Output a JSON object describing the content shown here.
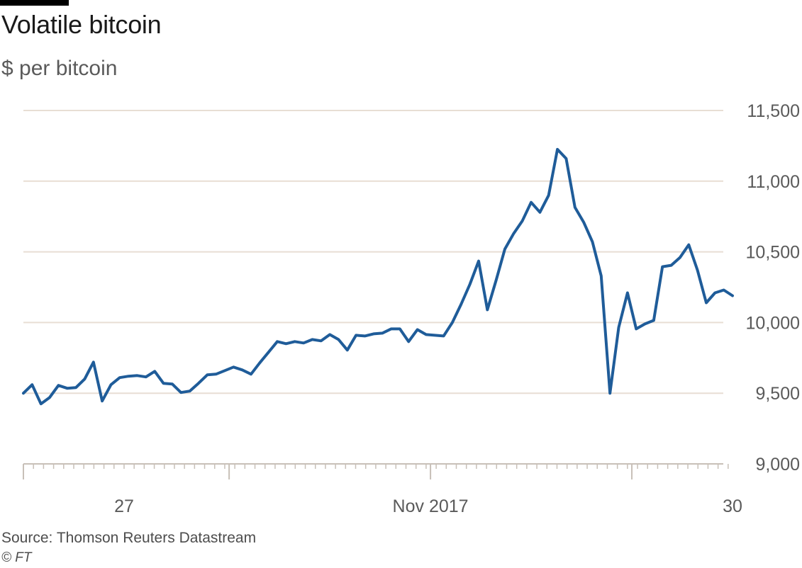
{
  "header": {
    "title": "Volatile bitcoin",
    "subtitle": "$ per bitcoin"
  },
  "footer": {
    "source": "Source: Thomson Reuters Datastream",
    "copyright": "© FT"
  },
  "colors": {
    "line": "#1f5c99",
    "grid": "#e8ded4",
    "axis": "#c8c0b8",
    "text": "#5a5a5a"
  },
  "chart_data": {
    "type": "line",
    "title": "Volatile bitcoin",
    "subtitle": "$ per bitcoin",
    "ylim": [
      9000,
      11500
    ],
    "yticks": [
      9000,
      9500,
      10000,
      10500,
      11000,
      11500
    ],
    "ytick_labels": [
      "9,000",
      "9,500",
      "10,000",
      "10,500",
      "11,000",
      "11,500"
    ],
    "xticks": [
      {
        "label": "27",
        "x": 11.5
      },
      {
        "label": "Nov 2017",
        "x": 46.5
      },
      {
        "label": "30",
        "x": 81
      }
    ],
    "grid": true,
    "axis_side": "right",
    "series": [
      {
        "values": [
          [
            0,
            9500
          ],
          [
            1,
            9560
          ],
          [
            2,
            9425
          ],
          [
            3,
            9470
          ],
          [
            4,
            9555
          ],
          [
            5,
            9535
          ],
          [
            6,
            9540
          ],
          [
            7,
            9600
          ],
          [
            8,
            9720
          ],
          [
            9,
            9445
          ],
          [
            10,
            9560
          ],
          [
            11,
            9610
          ],
          [
            12,
            9620
          ],
          [
            13,
            9625
          ],
          [
            14,
            9615
          ],
          [
            15,
            9655
          ],
          [
            16,
            9570
          ],
          [
            17,
            9565
          ],
          [
            18,
            9505
          ],
          [
            19,
            9515
          ],
          [
            20,
            9570
          ],
          [
            21,
            9630
          ],
          [
            22,
            9635
          ],
          [
            23,
            9660
          ],
          [
            24,
            9685
          ],
          [
            25,
            9665
          ],
          [
            26,
            9635
          ],
          [
            27,
            9715
          ],
          [
            28,
            9790
          ],
          [
            29,
            9865
          ],
          [
            30,
            9850
          ],
          [
            31,
            9865
          ],
          [
            32,
            9855
          ],
          [
            33,
            9880
          ],
          [
            34,
            9870
          ],
          [
            35,
            9915
          ],
          [
            36,
            9880
          ],
          [
            37,
            9805
          ],
          [
            38,
            9910
          ],
          [
            39,
            9905
          ],
          [
            40,
            9920
          ],
          [
            41,
            9925
          ],
          [
            42,
            9955
          ],
          [
            43,
            9955
          ],
          [
            44,
            9865
          ],
          [
            45,
            9950
          ],
          [
            46,
            9915
          ],
          [
            47,
            9910
          ],
          [
            48,
            9905
          ],
          [
            49,
            10000
          ],
          [
            50,
            10130
          ],
          [
            51,
            10270
          ],
          [
            52,
            10435
          ],
          [
            53,
            10090
          ],
          [
            54,
            10300
          ],
          [
            55,
            10520
          ],
          [
            56,
            10630
          ],
          [
            57,
            10720
          ],
          [
            58,
            10850
          ],
          [
            59,
            10780
          ],
          [
            60,
            10900
          ],
          [
            61,
            11225
          ],
          [
            62,
            11160
          ],
          [
            63,
            10815
          ],
          [
            64,
            10710
          ],
          [
            65,
            10570
          ],
          [
            66,
            10330
          ],
          [
            67,
            9500
          ],
          [
            68,
            9965
          ],
          [
            69,
            10210
          ],
          [
            70,
            9955
          ],
          [
            71,
            9990
          ],
          [
            72,
            10015
          ],
          [
            73,
            10395
          ],
          [
            74,
            10405
          ],
          [
            75,
            10460
          ],
          [
            76,
            10550
          ],
          [
            77,
            10370
          ],
          [
            78,
            10140
          ],
          [
            79,
            10210
          ],
          [
            80,
            10230
          ],
          [
            81,
            10190
          ]
        ]
      }
    ]
  }
}
